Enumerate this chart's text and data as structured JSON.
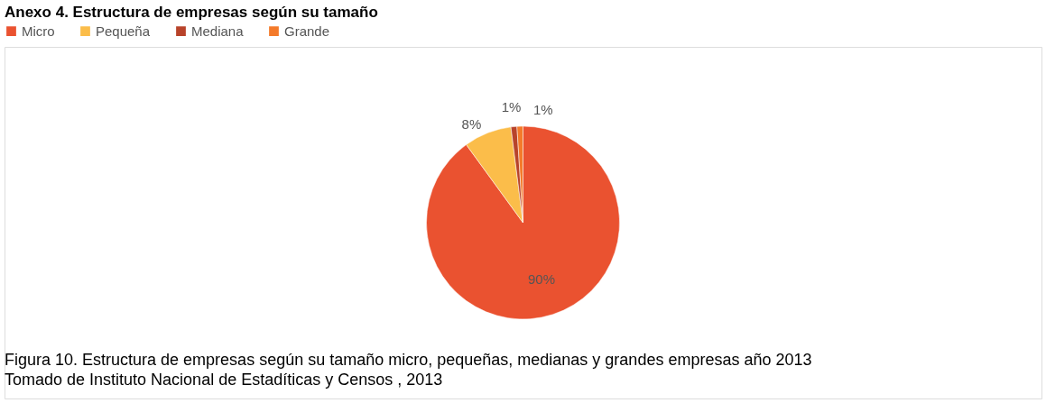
{
  "chart_data": {
    "type": "pie",
    "title": "Anexo 4. Estructura de empresas según su tamaño",
    "categories": [
      "Micro",
      "Pequeña",
      "Mediana",
      "Grande"
    ],
    "values": [
      90,
      8,
      1,
      1
    ],
    "colors": [
      "#ea5230",
      "#fbbd4a",
      "#b8432a",
      "#f47a2a"
    ],
    "value_labels": [
      "90%",
      "8%",
      "1%",
      "1%"
    ],
    "legend": "top",
    "annotations": [
      "Figura 10.  Estructura de empresas según su tamaño micro, pequeñas, medianas y grandes empresas año 2013",
      "Tomado de Instituto Nacional de Estadíticas y Censos , 2013"
    ]
  }
}
